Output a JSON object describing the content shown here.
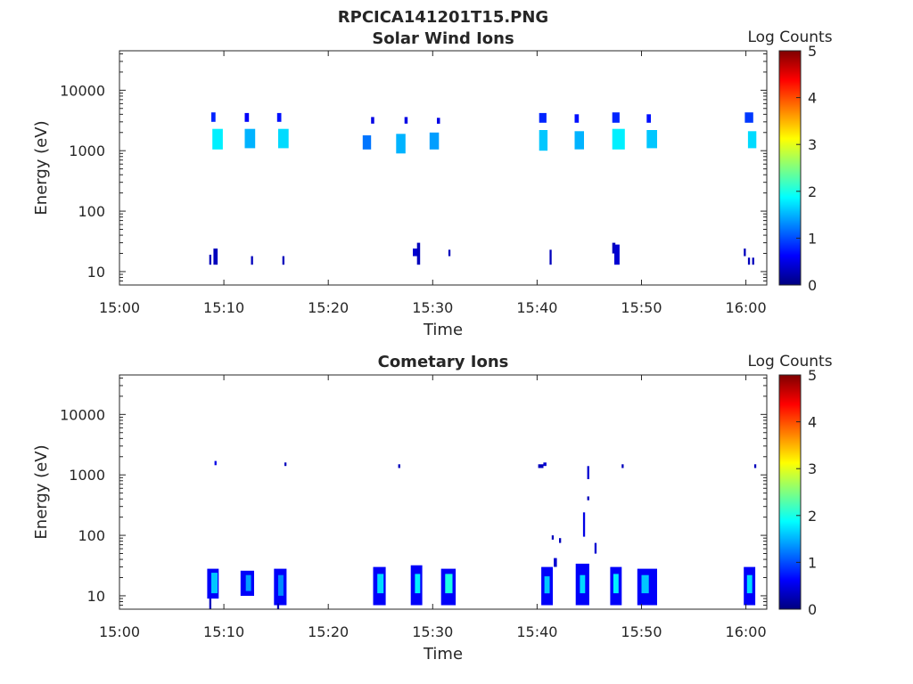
{
  "figure": {
    "title": "RPCICA141201T15.PNG"
  },
  "chart_data": [
    {
      "type": "heatmap",
      "title": "Solar Wind Ions",
      "xlabel": "Time",
      "ylabel": "Energy (eV)",
      "x_tick_labels": [
        "15:00",
        "15:10",
        "15:20",
        "15:30",
        "15:40",
        "15:50",
        "16:00"
      ],
      "x_range_minutes": [
        0,
        62
      ],
      "y_scale": "log",
      "y_range": [
        6,
        45000
      ],
      "y_tick_values": [
        10,
        100,
        1000,
        10000
      ],
      "y_tick_labels": [
        "10",
        "100",
        "1000",
        "10000"
      ],
      "colorbar": {
        "label": "Log Counts",
        "range": [
          0,
          5
        ],
        "tick_labels": [
          "0",
          "1",
          "2",
          "3",
          "4",
          "5"
        ],
        "colormap": "jet"
      },
      "patches": [
        {
          "t0": 8.8,
          "t1": 9.2,
          "e0": 3000,
          "e1": 4300,
          "v": 0.8
        },
        {
          "t0": 8.9,
          "t1": 9.9,
          "e0": 1050,
          "e1": 2300,
          "v": 1.8
        },
        {
          "t0": 12.0,
          "t1": 12.4,
          "e0": 3000,
          "e1": 4200,
          "v": 0.6
        },
        {
          "t0": 12.0,
          "t1": 13.0,
          "e0": 1100,
          "e1": 2300,
          "v": 1.5
        },
        {
          "t0": 15.1,
          "t1": 15.5,
          "e0": 3000,
          "e1": 4200,
          "v": 0.7
        },
        {
          "t0": 15.2,
          "t1": 16.2,
          "e0": 1100,
          "e1": 2300,
          "v": 1.7
        },
        {
          "t0": 23.3,
          "t1": 24.1,
          "e0": 1050,
          "e1": 1800,
          "v": 1.2
        },
        {
          "t0": 24.1,
          "t1": 24.4,
          "e0": 2800,
          "e1": 3600,
          "v": 0.5
        },
        {
          "t0": 26.5,
          "t1": 27.4,
          "e0": 900,
          "e1": 1900,
          "v": 1.5
        },
        {
          "t0": 27.3,
          "t1": 27.6,
          "e0": 2800,
          "e1": 3600,
          "v": 0.5
        },
        {
          "t0": 29.7,
          "t1": 30.6,
          "e0": 1050,
          "e1": 2000,
          "v": 1.4
        },
        {
          "t0": 30.4,
          "t1": 30.7,
          "e0": 2800,
          "e1": 3500,
          "v": 0.5
        },
        {
          "t0": 40.2,
          "t1": 40.9,
          "e0": 2900,
          "e1": 4200,
          "v": 0.8
        },
        {
          "t0": 40.2,
          "t1": 41.0,
          "e0": 1000,
          "e1": 2200,
          "v": 1.6
        },
        {
          "t0": 43.6,
          "t1": 44.0,
          "e0": 2900,
          "e1": 4000,
          "v": 0.7
        },
        {
          "t0": 43.6,
          "t1": 44.5,
          "e0": 1050,
          "e1": 2100,
          "v": 1.5
        },
        {
          "t0": 47.2,
          "t1": 47.9,
          "e0": 2900,
          "e1": 4300,
          "v": 0.8
        },
        {
          "t0": 47.2,
          "t1": 48.4,
          "e0": 1050,
          "e1": 2300,
          "v": 1.8
        },
        {
          "t0": 50.5,
          "t1": 50.9,
          "e0": 2900,
          "e1": 4000,
          "v": 0.7
        },
        {
          "t0": 50.5,
          "t1": 51.5,
          "e0": 1100,
          "e1": 2200,
          "v": 1.6
        },
        {
          "t0": 59.9,
          "t1": 60.7,
          "e0": 2900,
          "e1": 4300,
          "v": 0.9
        },
        {
          "t0": 60.2,
          "t1": 61.0,
          "e0": 1100,
          "e1": 2100,
          "v": 1.7
        },
        {
          "t0": 8.6,
          "t1": 8.8,
          "e0": 13,
          "e1": 19,
          "v": 0.3
        },
        {
          "t0": 9.0,
          "t1": 9.4,
          "e0": 13,
          "e1": 24,
          "v": 0.3
        },
        {
          "t0": 12.6,
          "t1": 12.8,
          "e0": 13,
          "e1": 18,
          "v": 0.3
        },
        {
          "t0": 15.6,
          "t1": 15.8,
          "e0": 13,
          "e1": 18,
          "v": 0.3
        },
        {
          "t0": 28.1,
          "t1": 28.6,
          "e0": 18,
          "e1": 24,
          "v": 0.4
        },
        {
          "t0": 28.5,
          "t1": 28.8,
          "e0": 13,
          "e1": 30,
          "v": 0.3
        },
        {
          "t0": 31.5,
          "t1": 31.7,
          "e0": 18,
          "e1": 23,
          "v": 0.3
        },
        {
          "t0": 41.2,
          "t1": 41.4,
          "e0": 13,
          "e1": 23,
          "v": 0.3
        },
        {
          "t0": 47.2,
          "t1": 47.5,
          "e0": 20,
          "e1": 30,
          "v": 0.3
        },
        {
          "t0": 47.4,
          "t1": 47.9,
          "e0": 13,
          "e1": 28,
          "v": 0.4
        },
        {
          "t0": 59.8,
          "t1": 60.0,
          "e0": 18,
          "e1": 24,
          "v": 0.3
        },
        {
          "t0": 60.2,
          "t1": 60.4,
          "e0": 13,
          "e1": 17,
          "v": 0.3
        },
        {
          "t0": 60.6,
          "t1": 60.8,
          "e0": 13,
          "e1": 17,
          "v": 0.3
        }
      ]
    },
    {
      "type": "heatmap",
      "title": "Cometary Ions",
      "xlabel": "Time",
      "ylabel": "Energy (eV)",
      "x_tick_labels": [
        "15:00",
        "15:10",
        "15:20",
        "15:30",
        "15:40",
        "15:50",
        "16:00"
      ],
      "x_range_minutes": [
        0,
        62
      ],
      "y_scale": "log",
      "y_range": [
        6,
        45000
      ],
      "y_tick_values": [
        10,
        100,
        1000,
        10000
      ],
      "y_tick_labels": [
        "10",
        "100",
        "1000",
        "10000"
      ],
      "colorbar": {
        "label": "Log Counts",
        "range": [
          0,
          5
        ],
        "tick_labels": [
          "0",
          "1",
          "2",
          "3",
          "4",
          "5"
        ],
        "colormap": "jet"
      },
      "patches": [
        {
          "t0": 8.4,
          "t1": 9.5,
          "e0": 9,
          "e1": 28,
          "v": 0.6
        },
        {
          "t0": 8.8,
          "t1": 9.4,
          "e0": 11,
          "e1": 24,
          "v": 1.6
        },
        {
          "t0": 8.6,
          "t1": 8.8,
          "e0": 6,
          "e1": 9,
          "v": 0.3
        },
        {
          "t0": 11.6,
          "t1": 12.9,
          "e0": 10,
          "e1": 26,
          "v": 0.6
        },
        {
          "t0": 12.1,
          "t1": 12.6,
          "e0": 12,
          "e1": 22,
          "v": 1.4
        },
        {
          "t0": 14.8,
          "t1": 16.0,
          "e0": 7,
          "e1": 28,
          "v": 0.6
        },
        {
          "t0": 15.2,
          "t1": 15.7,
          "e0": 10,
          "e1": 22,
          "v": 1.3
        },
        {
          "t0": 15.1,
          "t1": 15.3,
          "e0": 6,
          "e1": 7.5,
          "v": 0.3
        },
        {
          "t0": 24.3,
          "t1": 25.5,
          "e0": 7,
          "e1": 30,
          "v": 0.6
        },
        {
          "t0": 24.7,
          "t1": 25.3,
          "e0": 11,
          "e1": 23,
          "v": 1.7
        },
        {
          "t0": 27.9,
          "t1": 29.0,
          "e0": 7,
          "e1": 32,
          "v": 0.6
        },
        {
          "t0": 28.3,
          "t1": 28.8,
          "e0": 11,
          "e1": 23,
          "v": 1.8
        },
        {
          "t0": 30.8,
          "t1": 32.2,
          "e0": 7,
          "e1": 28,
          "v": 0.6
        },
        {
          "t0": 31.2,
          "t1": 31.9,
          "e0": 11,
          "e1": 23,
          "v": 2.0
        },
        {
          "t0": 40.4,
          "t1": 41.5,
          "e0": 7,
          "e1": 30,
          "v": 0.6
        },
        {
          "t0": 40.7,
          "t1": 41.2,
          "e0": 11,
          "e1": 21,
          "v": 1.6
        },
        {
          "t0": 41.6,
          "t1": 41.9,
          "e0": 30,
          "e1": 42,
          "v": 0.4
        },
        {
          "t0": 43.7,
          "t1": 45.0,
          "e0": 7,
          "e1": 34,
          "v": 0.6
        },
        {
          "t0": 44.1,
          "t1": 44.6,
          "e0": 11,
          "e1": 22,
          "v": 1.7
        },
        {
          "t0": 44.4,
          "t1": 44.6,
          "e0": 95,
          "e1": 240,
          "v": 0.5
        },
        {
          "t0": 45.5,
          "t1": 45.7,
          "e0": 50,
          "e1": 75,
          "v": 0.4
        },
        {
          "t0": 47.0,
          "t1": 48.1,
          "e0": 7,
          "e1": 30,
          "v": 0.6
        },
        {
          "t0": 47.3,
          "t1": 47.8,
          "e0": 11,
          "e1": 23,
          "v": 1.8
        },
        {
          "t0": 49.6,
          "t1": 51.5,
          "e0": 7,
          "e1": 28,
          "v": 0.6
        },
        {
          "t0": 50.0,
          "t1": 50.7,
          "e0": 11,
          "e1": 22,
          "v": 1.6
        },
        {
          "t0": 59.8,
          "t1": 60.9,
          "e0": 7,
          "e1": 30,
          "v": 0.6
        },
        {
          "t0": 60.1,
          "t1": 60.6,
          "e0": 11,
          "e1": 22,
          "v": 1.7
        },
        {
          "t0": 9.1,
          "t1": 9.3,
          "e0": 1450,
          "e1": 1700,
          "v": 0.5
        },
        {
          "t0": 15.8,
          "t1": 16.0,
          "e0": 1400,
          "e1": 1600,
          "v": 0.3
        },
        {
          "t0": 26.7,
          "t1": 26.9,
          "e0": 1300,
          "e1": 1500,
          "v": 0.3
        },
        {
          "t0": 40.1,
          "t1": 40.6,
          "e0": 1300,
          "e1": 1500,
          "v": 0.3
        },
        {
          "t0": 40.6,
          "t1": 40.9,
          "e0": 1400,
          "e1": 1600,
          "v": 0.4
        },
        {
          "t0": 44.8,
          "t1": 45.0,
          "e0": 850,
          "e1": 1400,
          "v": 0.4
        },
        {
          "t0": 44.8,
          "t1": 45.0,
          "e0": 380,
          "e1": 440,
          "v": 0.3
        },
        {
          "t0": 48.1,
          "t1": 48.3,
          "e0": 1300,
          "e1": 1500,
          "v": 0.3
        },
        {
          "t0": 60.8,
          "t1": 61.0,
          "e0": 1300,
          "e1": 1500,
          "v": 0.3
        },
        {
          "t0": 41.4,
          "t1": 41.6,
          "e0": 85,
          "e1": 100,
          "v": 0.3
        },
        {
          "t0": 42.1,
          "t1": 42.3,
          "e0": 75,
          "e1": 90,
          "v": 0.3
        }
      ]
    }
  ]
}
